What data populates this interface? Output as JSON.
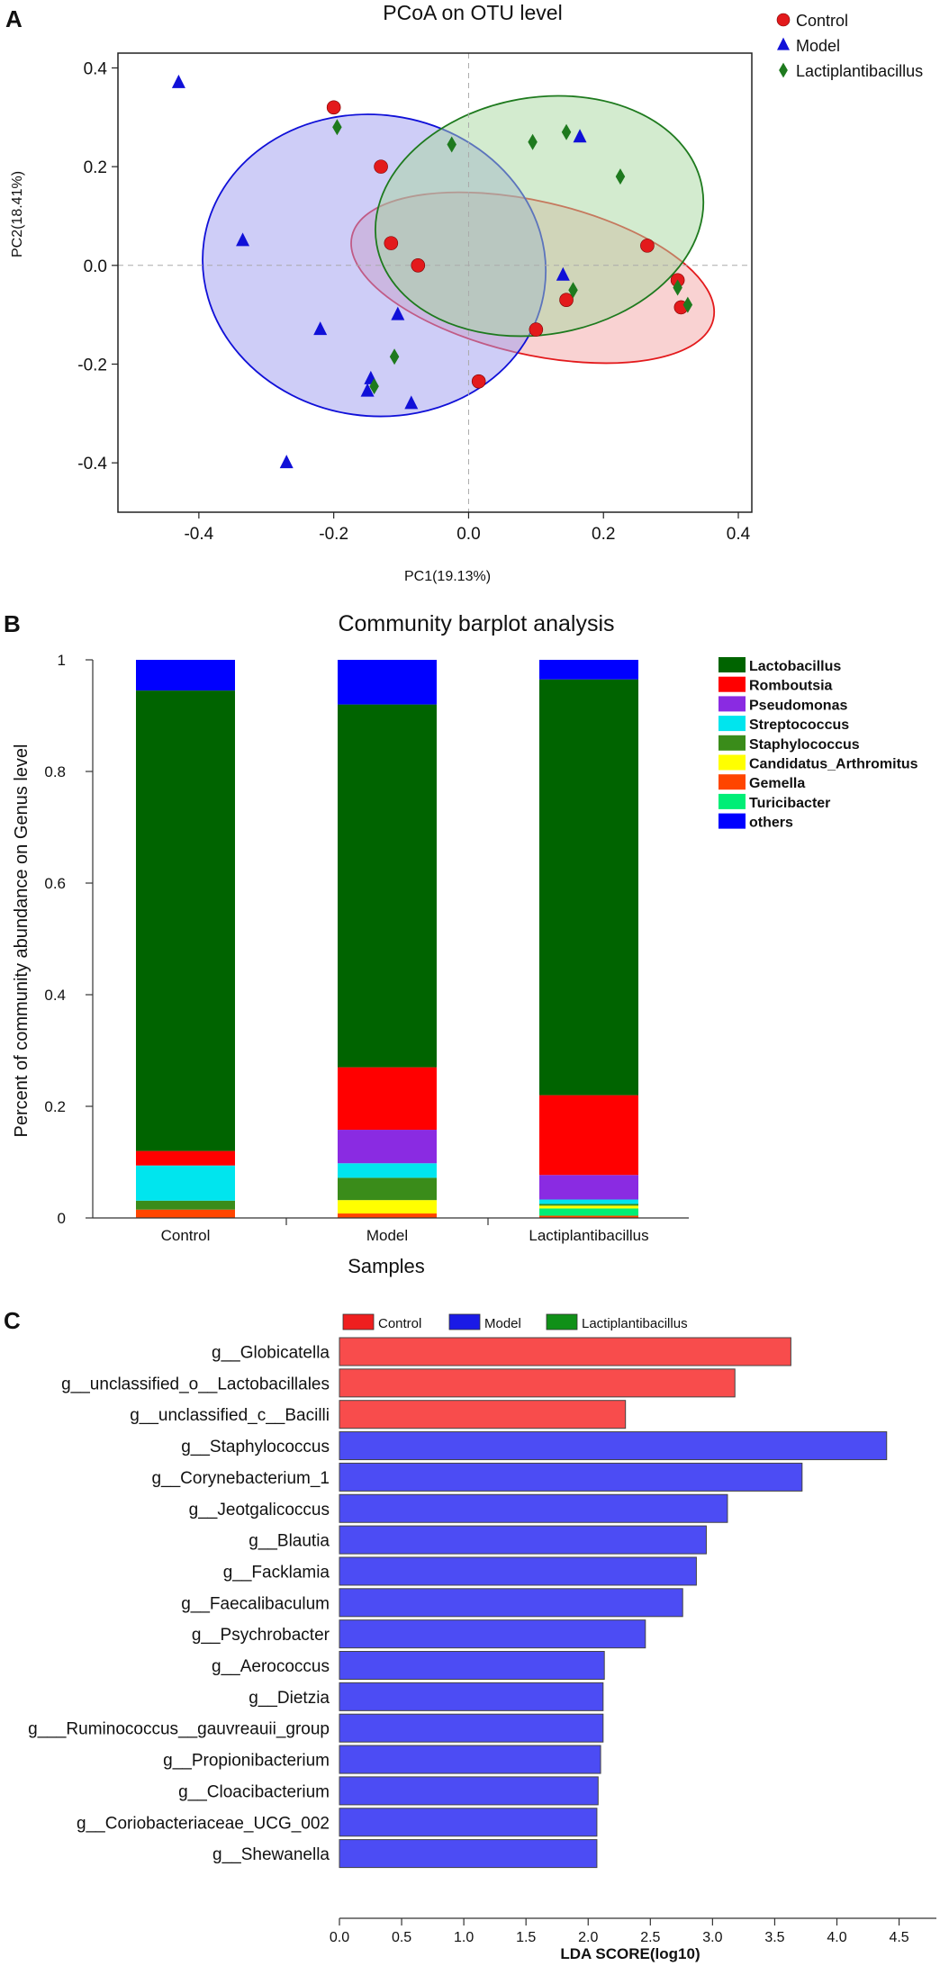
{
  "chart_data": [
    {
      "type": "scatter",
      "panel_label": "A",
      "title": "PCoA on OTU level",
      "xlabel": "PC1(19.13%)",
      "ylabel": "PC2(18.41%)",
      "xlim": [
        -0.52,
        0.42
      ],
      "ylim": [
        -0.5,
        0.43
      ],
      "xticks": [
        "-0.4",
        "-0.2",
        "0.0",
        "0.2",
        "0.4"
      ],
      "yticks": [
        "0.4",
        "0.2",
        "0.0",
        "-0.2",
        "-0.4"
      ],
      "legend": "top-right",
      "series": [
        {
          "name": "Control",
          "marker": "circle",
          "color": "#e31a1c",
          "ellipse_fill": "#f4a6a6",
          "ellipse": {
            "cx": 0.095,
            "cy": -0.025,
            "rx": 0.275,
            "ry": 0.155,
            "angle_deg": 13
          },
          "points": [
            [
              -0.2,
              0.32
            ],
            [
              -0.13,
              0.2
            ],
            [
              -0.115,
              0.045
            ],
            [
              -0.075,
              0.0
            ],
            [
              0.015,
              -0.235
            ],
            [
              0.1,
              -0.13
            ],
            [
              0.145,
              -0.07
            ],
            [
              0.265,
              0.04
            ],
            [
              0.31,
              -0.03
            ],
            [
              0.315,
              -0.085
            ]
          ]
        },
        {
          "name": "Model",
          "marker": "triangle",
          "color": "#1010d8",
          "ellipse_fill": "#9d9cf0",
          "ellipse": {
            "cx": -0.14,
            "cy": 0.0,
            "rx": 0.255,
            "ry": 0.305,
            "angle_deg": 8
          },
          "points": [
            [
              -0.43,
              0.37
            ],
            [
              -0.335,
              0.05
            ],
            [
              -0.27,
              -0.4
            ],
            [
              -0.22,
              -0.13
            ],
            [
              -0.145,
              -0.23
            ],
            [
              -0.15,
              -0.255
            ],
            [
              -0.105,
              -0.1
            ],
            [
              -0.085,
              -0.28
            ],
            [
              0.14,
              -0.02
            ],
            [
              0.165,
              0.26
            ]
          ]
        },
        {
          "name": "Lactiplantibacillus",
          "marker": "diamond",
          "color": "#1e7a1e",
          "ellipse_fill": "#a8d7a0",
          "ellipse": {
            "cx": 0.105,
            "cy": 0.1,
            "rx": 0.245,
            "ry": 0.24,
            "angle_deg": -10
          },
          "points": [
            [
              -0.195,
              0.28
            ],
            [
              -0.14,
              -0.245
            ],
            [
              -0.11,
              -0.185
            ],
            [
              -0.025,
              0.245
            ],
            [
              0.095,
              0.25
            ],
            [
              0.145,
              0.27
            ],
            [
              0.155,
              -0.05
            ],
            [
              0.225,
              0.18
            ],
            [
              0.31,
              -0.045
            ],
            [
              0.325,
              -0.08
            ]
          ]
        }
      ]
    },
    {
      "type": "bar",
      "stacked": true,
      "panel_label": "B",
      "title": "Community barplot analysis",
      "xlabel": "Samples",
      "ylabel": "Percent of community abundance on Genus level",
      "ylim": [
        0,
        1
      ],
      "yticks": [
        "0",
        "0.2",
        "0.4",
        "0.6",
        "0.8",
        "1"
      ],
      "legend": "right",
      "categories": [
        "Control",
        "Model",
        "Lactiplantibacillus"
      ],
      "series": [
        {
          "name": "Gemella",
          "color": "#ff4500",
          "values": [
            0.015,
            0.008,
            0.004
          ]
        },
        {
          "name": "Turicibacter",
          "color": "#00ee76",
          "values": [
            0.0,
            0.0,
            0.013
          ]
        },
        {
          "name": "Candidatus_Arthromitus",
          "color": "#ffff00",
          "values": [
            0.0,
            0.024,
            0.005
          ]
        },
        {
          "name": "Staphylococcus",
          "color": "#3a8c1a",
          "values": [
            0.016,
            0.04,
            0.003
          ]
        },
        {
          "name": "Streptococcus",
          "color": "#00e5ee",
          "values": [
            0.063,
            0.026,
            0.008
          ]
        },
        {
          "name": "Pseudomonas",
          "color": "#8a2be2",
          "values": [
            0.0,
            0.06,
            0.044
          ]
        },
        {
          "name": "Romboutsia",
          "color": "#ff0000",
          "values": [
            0.026,
            0.112,
            0.143
          ]
        },
        {
          "name": "Lactobacillus",
          "color": "#006400",
          "values": [
            0.825,
            0.65,
            0.745
          ]
        },
        {
          "name": "others",
          "color": "#0000ff",
          "values": [
            0.055,
            0.08,
            0.035
          ]
        }
      ],
      "legend_order": [
        "Lactobacillus",
        "Romboutsia",
        "Pseudomonas",
        "Streptococcus",
        "Staphylococcus",
        "Candidatus_Arthromitus",
        "Gemella",
        "Turicibacter",
        "others"
      ]
    },
    {
      "type": "bar",
      "orientation": "horizontal",
      "panel_label": "C",
      "xlabel": "LDA SCORE(log10)",
      "xlim": [
        0,
        4.8
      ],
      "xticks": [
        "0.0",
        "0.5",
        "1.0",
        "1.5",
        "2.0",
        "2.5",
        "3.0",
        "3.5",
        "4.0",
        "4.5"
      ],
      "legend": "top",
      "legend_items": [
        {
          "name": "Control",
          "color": "#ef1f1f"
        },
        {
          "name": "Model",
          "color": "#1a1ae6"
        },
        {
          "name": "Lactiplantibacillus",
          "color": "#109018"
        }
      ],
      "bars": [
        {
          "label": "g__Globicatella",
          "value": 3.63,
          "group": "Control"
        },
        {
          "label": "g__unclassified_o__Lactobacillales",
          "value": 3.18,
          "group": "Control"
        },
        {
          "label": "g__unclassified_c__Bacilli",
          "value": 2.3,
          "group": "Control"
        },
        {
          "label": "g__Staphylococcus",
          "value": 4.4,
          "group": "Model"
        },
        {
          "label": "g__Corynebacterium_1",
          "value": 3.72,
          "group": "Model"
        },
        {
          "label": "g__Jeotgalicoccus",
          "value": 3.12,
          "group": "Model"
        },
        {
          "label": "g__Blautia",
          "value": 2.95,
          "group": "Model"
        },
        {
          "label": "g__Facklamia",
          "value": 2.87,
          "group": "Model"
        },
        {
          "label": "g__Faecalibaculum",
          "value": 2.76,
          "group": "Model"
        },
        {
          "label": "g__Psychrobacter",
          "value": 2.46,
          "group": "Model"
        },
        {
          "label": "g__Aerococcus",
          "value": 2.13,
          "group": "Model"
        },
        {
          "label": "g__Dietzia",
          "value": 2.12,
          "group": "Model"
        },
        {
          "label": "g___Ruminococcus__gauvreauii_group",
          "value": 2.12,
          "group": "Model"
        },
        {
          "label": "g__Propionibacterium",
          "value": 2.1,
          "group": "Model"
        },
        {
          "label": "g__Cloacibacterium",
          "value": 2.08,
          "group": "Model"
        },
        {
          "label": "g__Coriobacteriaceae_UCG_002",
          "value": 2.07,
          "group": "Model"
        },
        {
          "label": "g__Shewanella",
          "value": 2.07,
          "group": "Model"
        }
      ]
    }
  ]
}
